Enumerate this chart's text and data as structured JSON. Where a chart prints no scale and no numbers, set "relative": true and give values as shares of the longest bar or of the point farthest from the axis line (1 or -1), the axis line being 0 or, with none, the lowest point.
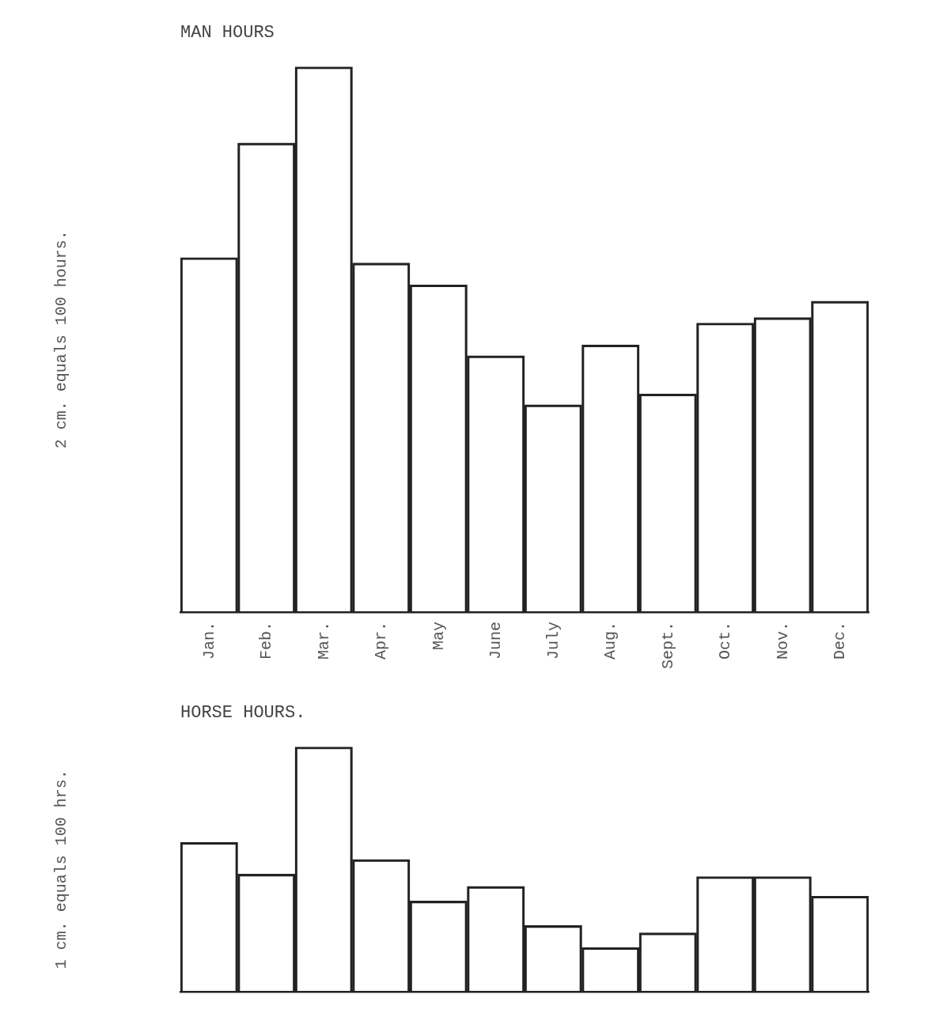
{
  "chart_data": [
    {
      "type": "bar",
      "title": "MAN HOURS",
      "annotations": [
        "2 cm. equals 100 hours."
      ],
      "relative": true,
      "categories": [
        "Jan.",
        "Feb.",
        "Mar.",
        "Apr.",
        "May",
        "June",
        "July",
        "Aug.",
        "Sept.",
        "Oct.",
        "Nov.",
        "Dec."
      ],
      "values": [
        0.65,
        0.86,
        1,
        0.64,
        0.6,
        0.47,
        0.38,
        0.49,
        0.4,
        0.53,
        0.54,
        0.57
      ],
      "color": "#222222"
    },
    {
      "type": "bar",
      "title": "HORSE HOURS.",
      "annotations": [
        "1 cm. equals 100 hrs."
      ],
      "relative": true,
      "categories": [
        null,
        null,
        null,
        null,
        null,
        null,
        null,
        null,
        null,
        null,
        null,
        null
      ],
      "values": [
        0.61,
        0.48,
        1,
        0.54,
        0.37,
        0.43,
        0.27,
        0.18,
        0.24,
        0.47,
        0.47,
        0.39
      ],
      "color": "#222222"
    }
  ]
}
